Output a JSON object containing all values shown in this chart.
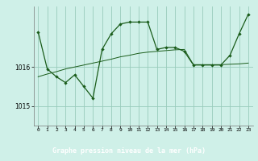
{
  "title": "Graphe pression niveau de la mer (hPa)",
  "bg_color": "#cff0e8",
  "title_bg": "#1a6b2a",
  "title_fg": "#ffffff",
  "line_color": "#1a5c1a",
  "grid_color": "#99ccbb",
  "xlim": [
    -0.5,
    23.5
  ],
  "ylim": [
    1014.5,
    1017.55
  ],
  "yticks": [
    1015,
    1016
  ],
  "xticks": [
    0,
    1,
    2,
    3,
    4,
    5,
    6,
    7,
    8,
    9,
    10,
    11,
    12,
    13,
    14,
    15,
    16,
    17,
    18,
    19,
    20,
    21,
    22,
    23
  ],
  "series1_x": [
    0,
    1,
    2,
    3,
    4,
    5,
    6,
    7,
    8,
    9,
    10,
    11,
    12,
    13,
    14,
    15,
    16,
    17,
    18,
    19,
    20,
    21,
    22,
    23
  ],
  "series1_y": [
    1016.9,
    1015.95,
    1015.75,
    1015.6,
    1015.8,
    1015.5,
    1015.2,
    1016.45,
    1016.85,
    1017.1,
    1017.15,
    1017.15,
    1017.15,
    1016.45,
    1016.5,
    1016.5,
    1016.4,
    1016.05,
    1016.05,
    1016.05,
    1016.05,
    1016.3,
    1016.85,
    1017.35
  ],
  "series2_x": [
    0,
    1,
    2,
    3,
    4,
    5,
    6,
    7,
    8,
    9,
    10,
    11,
    12,
    13,
    14,
    15,
    16,
    17,
    18,
    19,
    20,
    21,
    22,
    23
  ],
  "series2_y": [
    1015.75,
    1015.82,
    1015.88,
    1015.95,
    1016.0,
    1016.05,
    1016.1,
    1016.15,
    1016.2,
    1016.26,
    1016.3,
    1016.35,
    1016.38,
    1016.4,
    1016.42,
    1016.44,
    1016.45,
    1016.06,
    1016.06,
    1016.06,
    1016.06,
    1016.07,
    1016.08,
    1016.1
  ]
}
